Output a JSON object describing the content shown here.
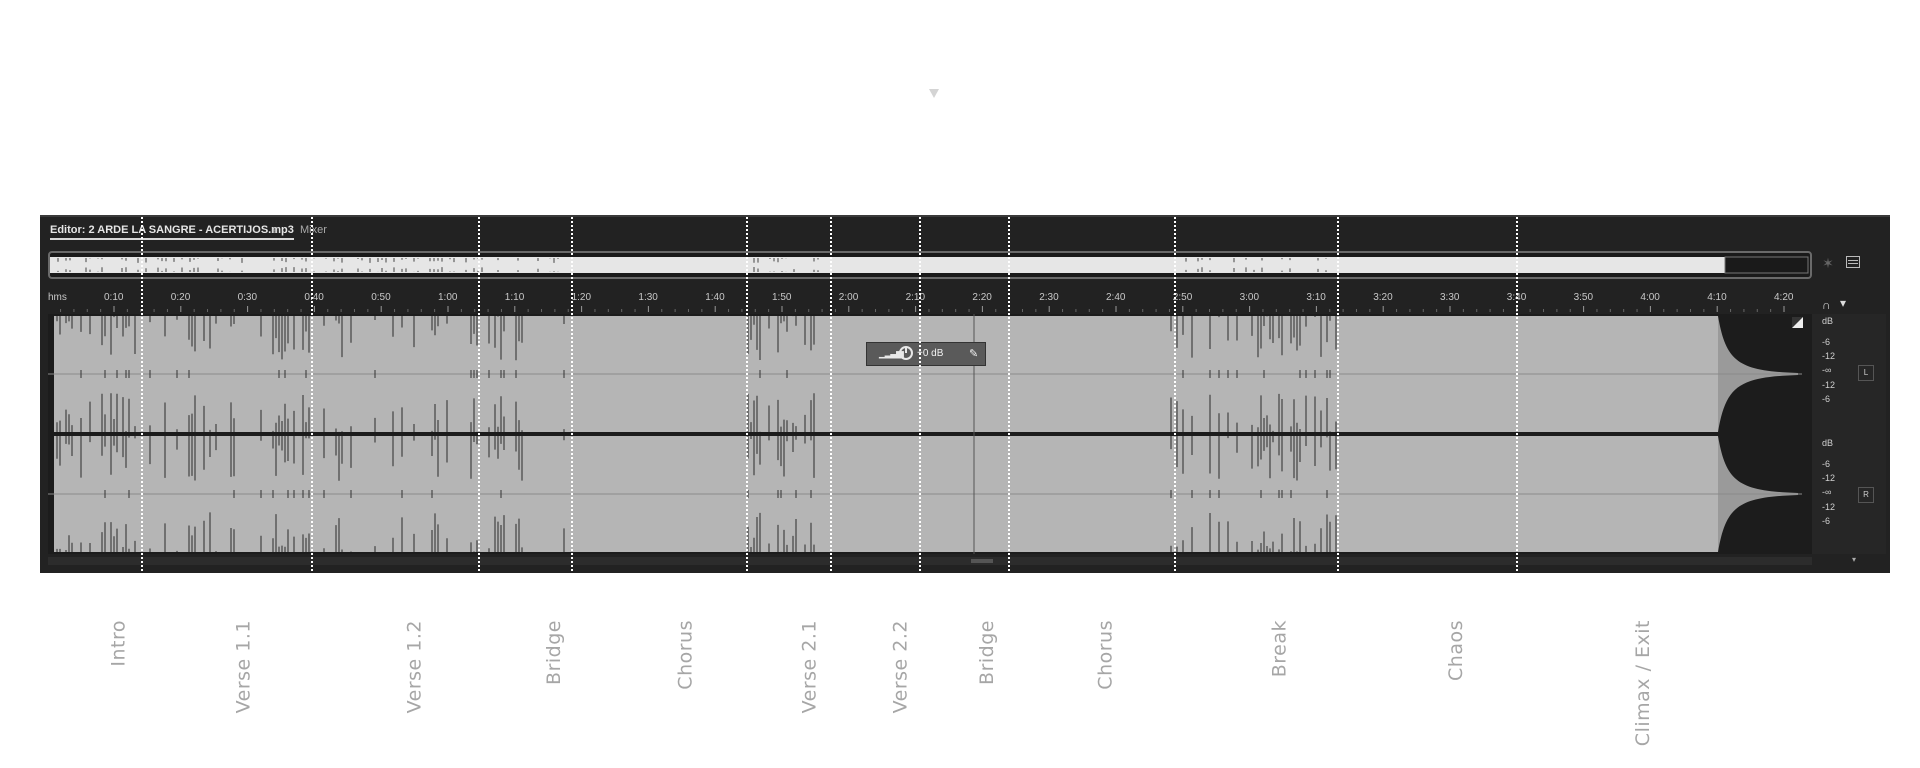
{
  "tabs": {
    "editor_label": "Editor: 2 ARDE LA SANGRE - ACERTIJOS.mp3",
    "menu_glyph": "≡",
    "mixer_label": "Mixer"
  },
  "ruler": {
    "unit": "hms",
    "ticks": [
      "0:10",
      "0:20",
      "0:30",
      "0:40",
      "0:50",
      "1:00",
      "1:10",
      "1:20",
      "1:30",
      "1:40",
      "1:50",
      "2:00",
      "2:10",
      "2:20",
      "2:30",
      "2:40",
      "2:50",
      "3:00",
      "3:10",
      "3:20",
      "3:30",
      "3:40",
      "3:50",
      "4:00",
      "4:10",
      "4:20"
    ]
  },
  "hud": {
    "value": "+0 dB"
  },
  "db_scale": {
    "left": [
      "dB",
      "-6",
      "-12",
      "-∞",
      "-12",
      "-6"
    ],
    "right": [
      "dB",
      "-6",
      "-12",
      "-∞",
      "-12",
      "-6"
    ],
    "channel_left": "L",
    "channel_right": "R"
  },
  "sections": [
    "Intro",
    "Verse 1.1",
    "Verse 1.2",
    "Bridge",
    "Chorus",
    "Verse 2.1",
    "Verse 2.2",
    "Bridge",
    "Chorus",
    "Break",
    "Chaos",
    "Climax / Exit"
  ],
  "colors": {
    "panel": "#222222",
    "waveform": "#b5b5b5",
    "marker": "#ffffff",
    "label": "#a6a6a6"
  },
  "icons": {
    "zoom": "zoom-icon",
    "panel": "panel-toggle-icon",
    "snap": "snap-icon",
    "marker": "marker-icon",
    "pin": "pin-icon"
  }
}
